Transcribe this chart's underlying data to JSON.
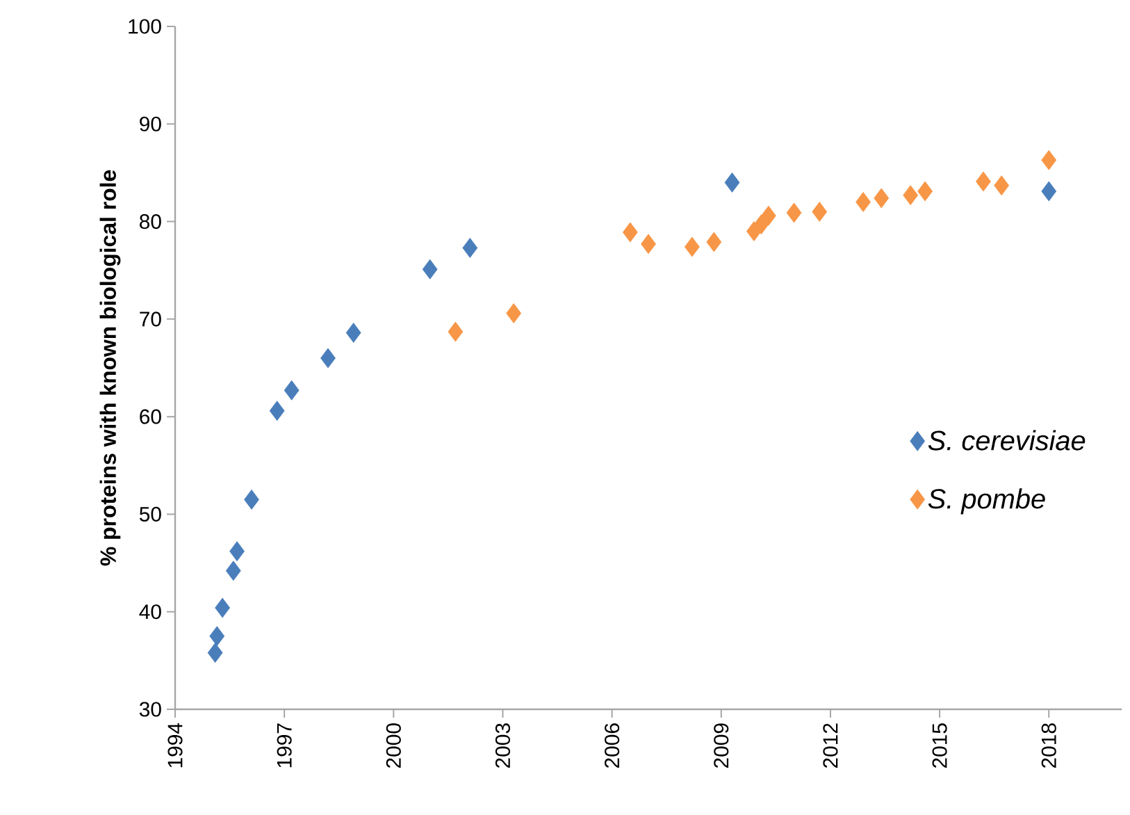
{
  "chart_data": {
    "type": "scatter",
    "ylabel": "% proteins with  known biological role",
    "xlim": [
      1994,
      2020
    ],
    "xticks": [
      1994,
      1997,
      2000,
      2003,
      2006,
      2009,
      2012,
      2015,
      2018
    ],
    "ylim": [
      30,
      100
    ],
    "yticks": [
      30,
      40,
      50,
      60,
      70,
      80,
      90,
      100
    ],
    "marker": "diamond",
    "legend": "right",
    "grid": false,
    "series": [
      {
        "name": "*S. cerevisiae*",
        "color": "#4a7ebb",
        "x": [
          1995.1,
          1995.15,
          1995.3,
          1995.6,
          1995.7,
          1996.1,
          1996.8,
          1997.2,
          1998.2,
          1998.9,
          2001.0,
          2002.1,
          2009.3,
          2013.3,
          2018
        ],
        "values": [
          35.8,
          37.5,
          40.4,
          44.2,
          46.2,
          51.5,
          60.6,
          62.7,
          66.0,
          68.6,
          75.1,
          77.3,
          84.0,
          null,
          83.1
        ]
      },
      {
        "name": "*S. pombe*",
        "color": "#f79646",
        "x": [
          2001.7,
          2003.3,
          2006.5,
          2007.0,
          2008.2,
          2008.8,
          2009.9,
          2010.1,
          2010.3,
          2011.0,
          2011.7,
          2012.9,
          2013.4,
          2014.2,
          2014.6,
          2016.2,
          2016.7,
          2018
        ],
        "values": [
          68.7,
          70.6,
          78.9,
          77.7,
          77.4,
          77.9,
          79.0,
          79.7,
          80.6,
          80.9,
          81.0,
          82.0,
          82.4,
          82.7,
          83.1,
          84.1,
          83.7,
          86.3
        ]
      }
    ]
  }
}
